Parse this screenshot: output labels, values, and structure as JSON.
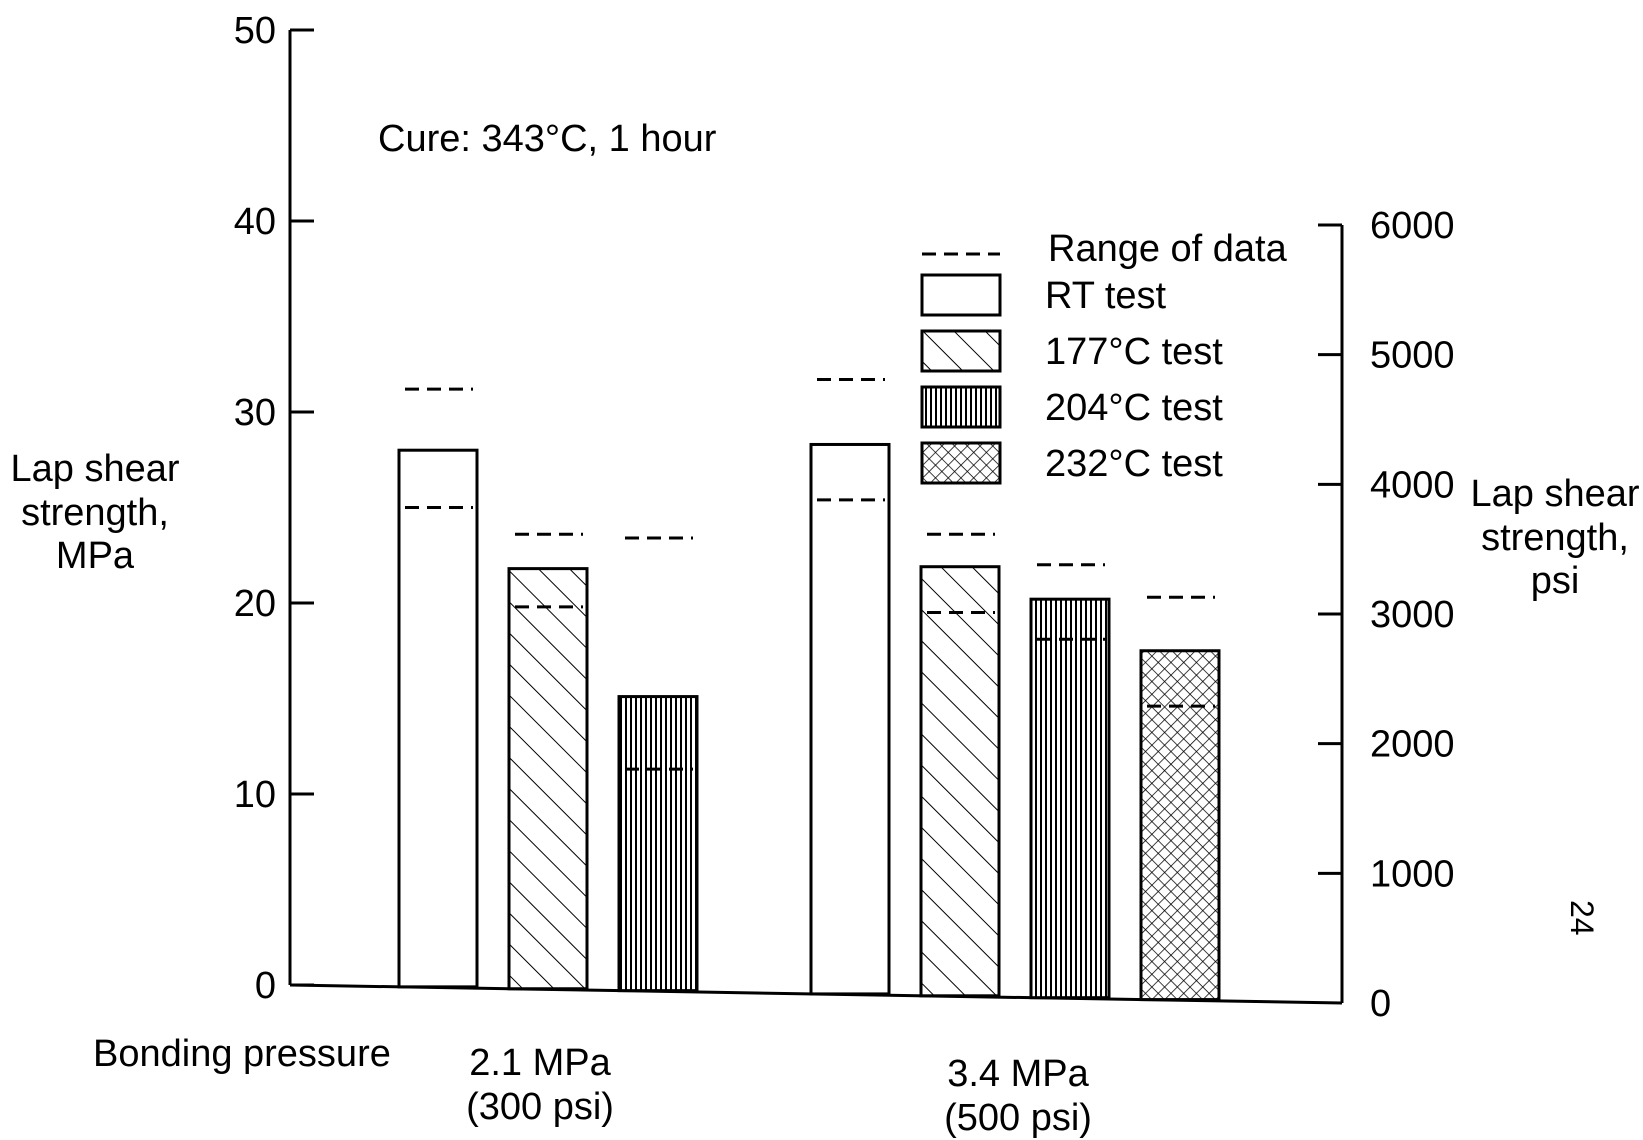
{
  "chart_data": {
    "type": "bar",
    "annotation": "Cure: 343°C, 1 hour",
    "ylabel_left": [
      "Lap shear",
      "strength,",
      "MPa"
    ],
    "ylabel_right": [
      "Lap shear",
      "strength,",
      "psi"
    ],
    "xlabel": "Bonding pressure",
    "ylim": [
      0,
      50
    ],
    "ylim_right": [
      0,
      6000
    ],
    "left_ticks": [
      0,
      10,
      20,
      30,
      40,
      50
    ],
    "right_ticks": [
      0,
      1000,
      2000,
      3000,
      4000,
      5000,
      6000
    ],
    "grid": false,
    "legend_position": "top-right",
    "legend": {
      "range_label": "Range of data",
      "entries": [
        {
          "label": "RT test",
          "pattern": "none"
        },
        {
          "label": "177°C test",
          "pattern": "diagonal"
        },
        {
          "label": "204°C test",
          "pattern": "vertical"
        },
        {
          "label": "232°C test",
          "pattern": "crosshatch"
        }
      ]
    },
    "groups": [
      {
        "label_lines": [
          "2.1 MPa",
          "(300 psi)"
        ],
        "bars": [
          {
            "series": "RT test",
            "value": 28.0,
            "range": [
              25.0,
              31.2
            ]
          },
          {
            "series": "177°C test",
            "value": 21.8,
            "range": [
              19.8,
              23.6
            ]
          },
          {
            "series": "204°C test",
            "value": 15.1,
            "range": [
              11.3,
              23.4
            ]
          }
        ]
      },
      {
        "label_lines": [
          "3.4 MPa",
          "(500 psi)"
        ],
        "bars": [
          {
            "series": "RT test",
            "value": 28.3,
            "range": [
              25.4,
              31.7
            ]
          },
          {
            "series": "177°C test",
            "value": 21.9,
            "range": [
              19.5,
              23.6
            ]
          },
          {
            "series": "204°C test",
            "value": 20.2,
            "range": [
              18.1,
              22.0
            ]
          },
          {
            "series": "232°C test",
            "value": 17.5,
            "range": [
              14.6,
              20.3
            ]
          }
        ]
      }
    ],
    "page_number": "24"
  }
}
